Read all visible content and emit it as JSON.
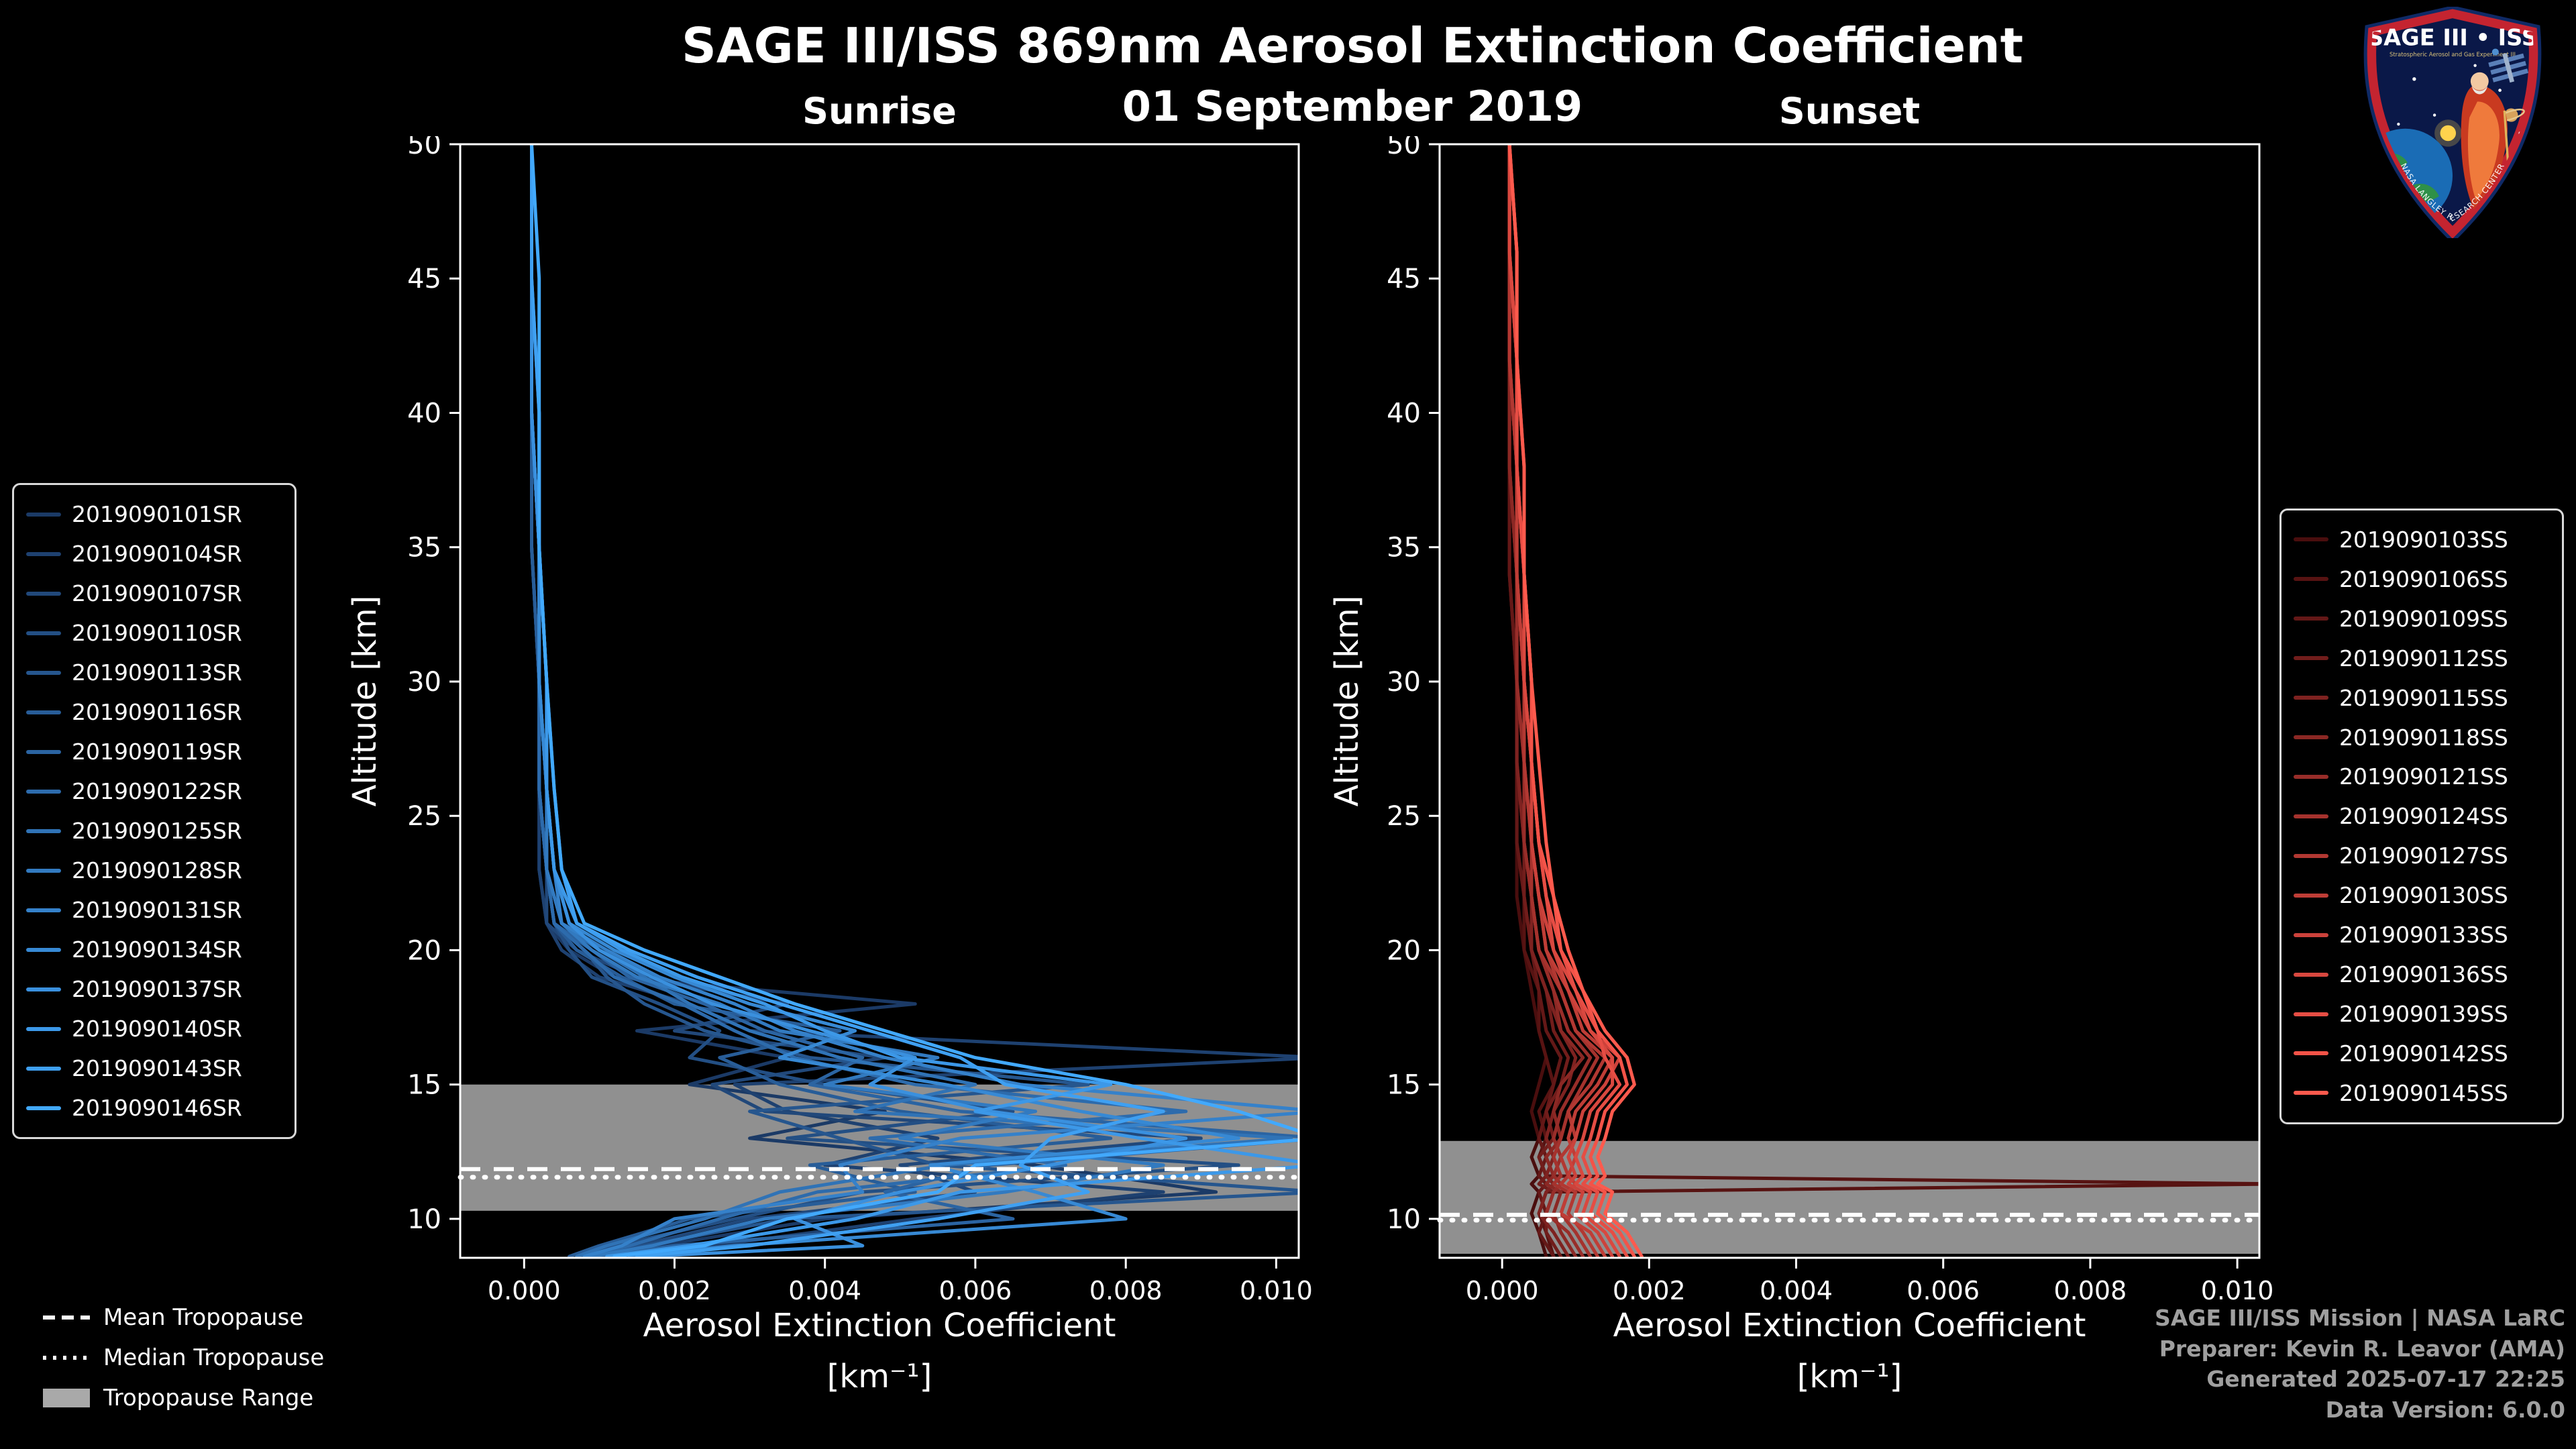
{
  "title": "SAGE III/ISS 869nm Aerosol Extinction Coefficient",
  "subtitle": "01 September 2019",
  "tropopause_legend": {
    "mean": "Mean Tropopause",
    "median": "Median Tropopause",
    "range": "Tropopause Range"
  },
  "credits": {
    "lines": [
      "SAGE III/ISS Mission | NASA LaRC",
      "Preparer: Kevin R. Leavor (AMA)",
      "Generated 2025-07-17 22:25",
      "Data Version: 6.0.0"
    ]
  },
  "logo": {
    "title": "SAGE III • ISS",
    "subtitle": "Stratospheric Aerosol and Gas Experiment III",
    "ring_text": "NASA LANGLEY RESEARCH CENTER"
  },
  "chart_data": [
    {
      "type": "line",
      "panel": "sunrise",
      "title": "Sunrise",
      "xlabel": "Aerosol Extinction Coefficient",
      "xunit": "[km⁻¹]",
      "ylabel": "Altitude [km]",
      "xlim": [
        -0.00085,
        0.0103
      ],
      "ylim": [
        8.55,
        50
      ],
      "xtick_values": [
        0,
        0.002,
        0.004,
        0.006,
        0.008,
        0.01
      ],
      "xtick_labels": [
        "0.000",
        "0.002",
        "0.004",
        "0.006",
        "0.008",
        "0.010"
      ],
      "ytick_values": [
        10,
        15,
        20,
        25,
        30,
        35,
        40,
        45,
        50
      ],
      "ytick_labels": [
        "10",
        "15",
        "20",
        "25",
        "30",
        "35",
        "40",
        "45",
        "50"
      ],
      "value_scale": 0.001,
      "tropopause": {
        "range": [
          10.3,
          15.0
        ],
        "mean": 11.85,
        "median": 11.55
      },
      "altitudes": [
        50,
        45,
        40,
        35,
        30,
        26,
        23,
        21,
        20,
        19,
        18,
        17,
        16,
        15,
        14,
        13,
        12,
        11,
        10,
        9,
        8.6
      ],
      "series": [
        {
          "name": "2019090101SR",
          "color": "#1b3a66",
          "values": [
            0.1,
            0.1,
            0.1,
            0.1,
            0.2,
            0.2,
            0.2,
            0.3,
            0.6,
            1.2,
            5.2,
            1.5,
            3.5,
            2.2,
            4.8,
            3.0,
            6.8,
            9.2,
            4.0,
            1.8,
            0.8
          ]
        },
        {
          "name": "2019090104SR",
          "color": "#1e4170",
          "values": [
            0.1,
            0.1,
            0.1,
            0.1,
            0.2,
            0.2,
            0.2,
            0.3,
            0.5,
            1.0,
            2.2,
            3.0,
            10.6,
            2.8,
            3.5,
            5.5,
            4.0,
            8.5,
            5.2,
            2.5,
            1.2
          ]
        },
        {
          "name": "2019090107SR",
          "color": "#21487a",
          "values": [
            0.1,
            0.1,
            0.1,
            0.1,
            0.2,
            0.2,
            0.3,
            0.3,
            0.7,
            1.5,
            3.5,
            2.0,
            4.8,
            2.5,
            3.2,
            9.0,
            5.0,
            6.0,
            3.0,
            1.5,
            0.9
          ]
        },
        {
          "name": "2019090110SR",
          "color": "#234f84",
          "values": [
            0.1,
            0.1,
            0.1,
            0.1,
            0.2,
            0.2,
            0.3,
            0.4,
            0.6,
            0.9,
            1.8,
            2.6,
            2.2,
            4.0,
            6.5,
            3.5,
            9.5,
            4.5,
            2.8,
            1.2,
            0.7
          ]
        },
        {
          "name": "2019090113SR",
          "color": "#26568e",
          "values": [
            0.1,
            0.1,
            0.1,
            0.1,
            0.2,
            0.2,
            0.3,
            0.4,
            0.8,
            1.1,
            1.6,
            2.4,
            3.8,
            7.5,
            3.0,
            4.2,
            5.5,
            10.6,
            3.5,
            1.6,
            0.8
          ]
        },
        {
          "name": "2019090116SR",
          "color": "#285d98",
          "values": [
            0.1,
            0.1,
            0.1,
            0.1,
            0.2,
            0.2,
            0.3,
            0.4,
            0.7,
            1.3,
            2.0,
            4.2,
            2.6,
            3.4,
            5.0,
            7.8,
            3.8,
            5.2,
            2.2,
            1.0,
            0.6
          ]
        },
        {
          "name": "2019090119SR",
          "color": "#2b64a2",
          "values": [
            0.1,
            0.1,
            0.1,
            0.2,
            0.2,
            0.2,
            0.3,
            0.4,
            0.9,
            1.4,
            2.4,
            3.2,
            4.5,
            3.8,
            5.8,
            10.6,
            6.2,
            4.8,
            6.5,
            2.0,
            1.0
          ]
        },
        {
          "name": "2019090122SR",
          "color": "#2d6bac",
          "values": [
            0.1,
            0.1,
            0.1,
            0.2,
            0.2,
            0.2,
            0.3,
            0.4,
            0.8,
            1.2,
            2.1,
            2.8,
            3.6,
            5.2,
            8.8,
            4.6,
            7.2,
            3.9,
            2.6,
            1.4,
            0.8
          ]
        },
        {
          "name": "2019090125SR",
          "color": "#3073b6",
          "values": [
            0.1,
            0.1,
            0.1,
            0.2,
            0.2,
            0.3,
            0.3,
            0.5,
            1.0,
            1.6,
            2.2,
            3.0,
            4.2,
            6.0,
            4.4,
            10.2,
            5.6,
            3.4,
            2.4,
            1.1,
            0.7
          ]
        },
        {
          "name": "2019090128SR",
          "color": "#327ac0",
          "values": [
            0.1,
            0.1,
            0.1,
            0.2,
            0.2,
            0.3,
            0.3,
            0.5,
            0.9,
            1.5,
            2.6,
            3.4,
            5.5,
            4.0,
            6.8,
            5.0,
            8.5,
            6.4,
            3.2,
            1.7,
            0.9
          ]
        },
        {
          "name": "2019090131SR",
          "color": "#3581ca",
          "values": [
            0.1,
            0.1,
            0.1,
            0.2,
            0.2,
            0.3,
            0.4,
            0.5,
            1.1,
            1.8,
            2.8,
            3.6,
            4.8,
            6.6,
            10.6,
            5.8,
            4.2,
            4.5,
            2.0,
            1.3,
            0.8
          ]
        },
        {
          "name": "2019090134SR",
          "color": "#3789d4",
          "values": [
            0.1,
            0.1,
            0.1,
            0.2,
            0.2,
            0.3,
            0.4,
            0.6,
            1.2,
            2.0,
            3.0,
            4.4,
            3.4,
            5.6,
            7.4,
            9.5,
            5.4,
            6.8,
            8.0,
            2.8,
            1.4
          ]
        },
        {
          "name": "2019090137SR",
          "color": "#3a90de",
          "values": [
            0.1,
            0.1,
            0.1,
            0.2,
            0.3,
            0.3,
            0.4,
            0.6,
            1.0,
            1.7,
            2.5,
            3.8,
            5.2,
            4.6,
            6.2,
            8.8,
            7.0,
            5.0,
            3.6,
            4.5,
            1.6
          ]
        },
        {
          "name": "2019090140SR",
          "color": "#3c98e8",
          "values": [
            0.1,
            0.1,
            0.2,
            0.2,
            0.3,
            0.3,
            0.4,
            0.7,
            1.3,
            2.1,
            3.2,
            4.0,
            5.0,
            7.8,
            6.0,
            8.2,
            10.6,
            5.8,
            4.4,
            2.2,
            1.1
          ]
        },
        {
          "name": "2019090143SR",
          "color": "#3fa0f2",
          "values": [
            0.1,
            0.1,
            0.2,
            0.2,
            0.3,
            0.4,
            0.5,
            0.7,
            1.4,
            2.3,
            3.4,
            4.6,
            5.8,
            6.4,
            8.5,
            7.0,
            6.6,
            7.5,
            5.5,
            3.0,
            1.5
          ]
        },
        {
          "name": "2019090146SR",
          "color": "#42a9fc",
          "values": [
            0.1,
            0.2,
            0.2,
            0.2,
            0.3,
            0.4,
            0.5,
            0.8,
            1.6,
            2.6,
            3.6,
            4.8,
            6.0,
            8.0,
            9.5,
            10.6,
            6.0,
            5.5,
            3.5,
            2.4,
            1.2
          ]
        }
      ]
    },
    {
      "type": "line",
      "panel": "sunset",
      "title": "Sunset",
      "xlabel": "Aerosol Extinction Coefficient",
      "xunit": "[km⁻¹]",
      "ylabel": "Altitude [km]",
      "xlim": [
        -0.00085,
        0.0103
      ],
      "ylim": [
        8.55,
        50
      ],
      "xtick_values": [
        0,
        0.002,
        0.004,
        0.006,
        0.008,
        0.01
      ],
      "xtick_labels": [
        "0.000",
        "0.002",
        "0.004",
        "0.006",
        "0.008",
        "0.010"
      ],
      "ytick_values": [
        10,
        15,
        20,
        25,
        30,
        35,
        40,
        45,
        50
      ],
      "ytick_labels": [
        "10",
        "15",
        "20",
        "25",
        "30",
        "35",
        "40",
        "45",
        "50"
      ],
      "value_scale": 0.001,
      "tropopause": {
        "range": [
          8.7,
          12.9
        ],
        "mean": 10.15,
        "median": 9.95
      },
      "altitudes": [
        50,
        46,
        42,
        38,
        34,
        30,
        27,
        24,
        22,
        20,
        18.5,
        17,
        16,
        15,
        14,
        13,
        12.3,
        11.6,
        11.3,
        11.0,
        10.2,
        9.5,
        8.6
      ],
      "series": [
        {
          "name": "2019090103SS",
          "color": "#4a0e0e",
          "values": [
            0.1,
            0.1,
            0.1,
            0.1,
            0.1,
            0.2,
            0.2,
            0.2,
            0.2,
            0.3,
            0.4,
            0.5,
            0.6,
            0.5,
            0.4,
            0.5,
            0.4,
            0.5,
            0.4,
            0.5,
            0.4,
            0.5,
            0.6
          ]
        },
        {
          "name": "2019090106SS",
          "color": "#571312",
          "values": [
            0.1,
            0.1,
            0.1,
            0.1,
            0.1,
            0.2,
            0.2,
            0.2,
            0.3,
            0.3,
            0.5,
            0.5,
            0.6,
            0.7,
            0.5,
            0.6,
            0.5,
            0.6,
            10.6,
            0.6,
            0.5,
            0.6,
            0.7
          ]
        },
        {
          "name": "2019090109SS",
          "color": "#641817",
          "values": [
            0.1,
            0.1,
            0.1,
            0.1,
            0.1,
            0.2,
            0.2,
            0.2,
            0.3,
            0.4,
            0.5,
            0.6,
            0.8,
            0.7,
            0.6,
            0.5,
            0.6,
            0.5,
            0.6,
            0.5,
            0.6,
            0.5,
            0.7
          ]
        },
        {
          "name": "2019090112SS",
          "color": "#711d1b",
          "values": [
            0.1,
            0.1,
            0.1,
            0.1,
            0.2,
            0.2,
            0.2,
            0.3,
            0.3,
            0.4,
            0.6,
            0.7,
            0.9,
            0.8,
            0.6,
            0.7,
            0.5,
            0.6,
            0.5,
            0.7,
            0.6,
            0.6,
            0.8
          ]
        },
        {
          "name": "2019090115SS",
          "color": "#7e2220",
          "values": [
            0.1,
            0.1,
            0.1,
            0.1,
            0.2,
            0.2,
            0.2,
            0.3,
            0.4,
            0.4,
            0.6,
            0.8,
            1.0,
            0.9,
            0.7,
            0.6,
            0.7,
            0.6,
            0.7,
            0.6,
            0.5,
            0.7,
            0.9
          ]
        },
        {
          "name": "2019090118SS",
          "color": "#8b2824",
          "values": [
            0.1,
            0.1,
            0.1,
            0.1,
            0.2,
            0.2,
            0.3,
            0.3,
            0.4,
            0.5,
            0.7,
            0.8,
            1.1,
            0.8,
            0.7,
            0.8,
            0.6,
            0.7,
            0.6,
            0.8,
            0.7,
            0.8,
            1.0
          ]
        },
        {
          "name": "2019090121SS",
          "color": "#982d29",
          "values": [
            0.1,
            0.1,
            0.1,
            0.2,
            0.2,
            0.2,
            0.3,
            0.3,
            0.4,
            0.5,
            0.7,
            0.9,
            1.2,
            1.0,
            0.8,
            0.7,
            0.8,
            0.7,
            0.8,
            0.7,
            0.6,
            0.9,
            1.1
          ]
        },
        {
          "name": "2019090124SS",
          "color": "#a5322d",
          "values": [
            0.1,
            0.1,
            0.1,
            0.2,
            0.2,
            0.3,
            0.3,
            0.4,
            0.4,
            0.5,
            0.8,
            1.0,
            1.3,
            1.1,
            0.9,
            0.8,
            0.7,
            0.8,
            0.7,
            0.9,
            0.8,
            1.0,
            1.2
          ]
        },
        {
          "name": "2019090127SS",
          "color": "#b23832",
          "values": [
            0.1,
            0.1,
            0.1,
            0.2,
            0.2,
            0.3,
            0.3,
            0.4,
            0.5,
            0.6,
            0.8,
            1.0,
            1.4,
            1.2,
            0.9,
            1.0,
            0.8,
            0.9,
            0.8,
            1.0,
            0.9,
            1.1,
            1.3
          ]
        },
        {
          "name": "2019090130SS",
          "color": "#bf3d36",
          "values": [
            0.1,
            0.1,
            0.2,
            0.2,
            0.2,
            0.3,
            0.4,
            0.4,
            0.5,
            0.6,
            0.9,
            1.1,
            1.5,
            1.3,
            1.0,
            0.9,
            1.0,
            0.9,
            1.0,
            0.9,
            0.8,
            1.2,
            1.4
          ]
        },
        {
          "name": "2019090133SS",
          "color": "#cc423b",
          "values": [
            0.1,
            0.1,
            0.2,
            0.2,
            0.3,
            0.3,
            0.4,
            0.4,
            0.5,
            0.7,
            0.9,
            1.2,
            1.6,
            1.4,
            1.1,
            1.0,
            0.9,
            1.0,
            0.9,
            1.1,
            1.0,
            1.3,
            1.5
          ]
        },
        {
          "name": "2019090136SS",
          "color": "#d9483f",
          "values": [
            0.1,
            0.1,
            0.2,
            0.2,
            0.3,
            0.3,
            0.4,
            0.5,
            0.6,
            0.7,
            1.0,
            1.2,
            1.5,
            1.5,
            1.2,
            1.1,
            1.0,
            1.1,
            1.0,
            1.2,
            1.1,
            1.4,
            1.6
          ]
        },
        {
          "name": "2019090139SS",
          "color": "#e64d44",
          "values": [
            0.1,
            0.2,
            0.2,
            0.2,
            0.3,
            0.4,
            0.4,
            0.5,
            0.6,
            0.8,
            1.0,
            1.3,
            1.4,
            1.6,
            1.3,
            1.2,
            1.1,
            1.2,
            1.1,
            1.3,
            1.2,
            1.5,
            1.7
          ]
        },
        {
          "name": "2019090142SS",
          "color": "#f35348",
          "values": [
            0.1,
            0.2,
            0.2,
            0.3,
            0.3,
            0.4,
            0.4,
            0.5,
            0.7,
            0.8,
            1.1,
            1.3,
            1.6,
            1.7,
            1.4,
            1.3,
            1.2,
            1.3,
            1.2,
            1.4,
            1.3,
            1.6,
            1.8
          ]
        },
        {
          "name": "2019090145SS",
          "color": "#ff5a4d",
          "values": [
            0.1,
            0.2,
            0.2,
            0.3,
            0.3,
            0.4,
            0.5,
            0.6,
            0.7,
            0.9,
            1.1,
            1.4,
            1.7,
            1.8,
            1.5,
            1.4,
            1.3,
            1.4,
            1.3,
            1.5,
            1.4,
            1.7,
            1.9
          ]
        }
      ]
    }
  ]
}
